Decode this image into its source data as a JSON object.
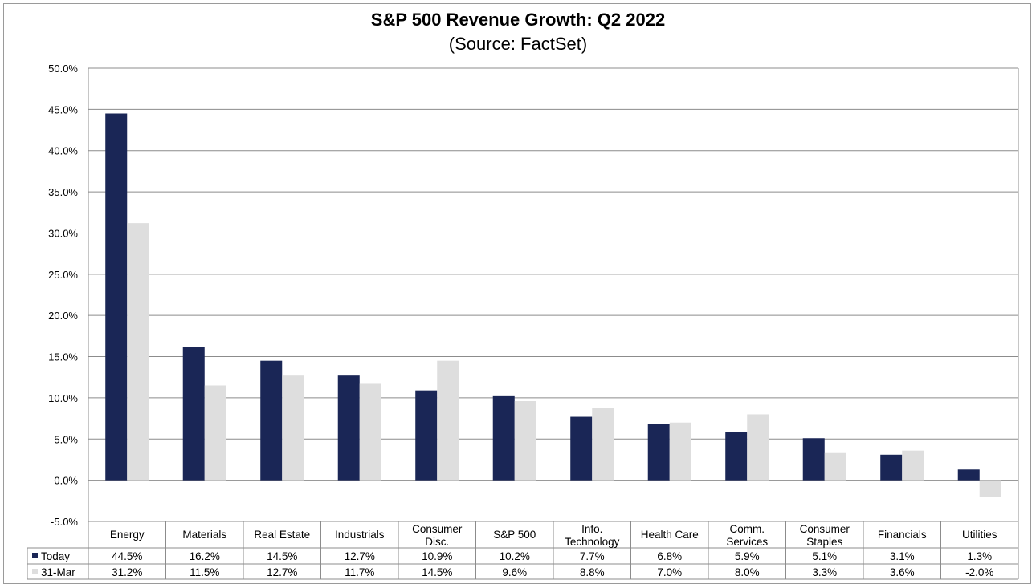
{
  "chart_data": {
    "type": "bar",
    "title": "S&P 500 Revenue Growth: Q2 2022",
    "subtitle": "(Source: FactSet)",
    "categories": [
      "Energy",
      "Materials",
      "Real Estate",
      "Industrials",
      "Consumer Disc.",
      "S&P 500",
      "Info. Technology",
      "Health Care",
      "Comm. Services",
      "Consumer Staples",
      "Financials",
      "Utilities"
    ],
    "category_lines": [
      [
        "Energy"
      ],
      [
        "Materials"
      ],
      [
        "Real Estate"
      ],
      [
        "Industrials"
      ],
      [
        "Consumer",
        "Disc."
      ],
      [
        "S&P 500"
      ],
      [
        "Info.",
        "Technology"
      ],
      [
        "Health Care"
      ],
      [
        "Comm.",
        "Services"
      ],
      [
        "Consumer",
        "Staples"
      ],
      [
        "Financials"
      ],
      [
        "Utilities"
      ]
    ],
    "series": [
      {
        "name": "Today",
        "color": "#1a2656",
        "values": [
          44.5,
          16.2,
          14.5,
          12.7,
          10.9,
          10.2,
          7.7,
          6.8,
          5.9,
          5.1,
          3.1,
          1.3
        ],
        "labels": [
          "44.5%",
          "16.2%",
          "14.5%",
          "12.7%",
          "10.9%",
          "10.2%",
          "7.7%",
          "6.8%",
          "5.9%",
          "5.1%",
          "3.1%",
          "1.3%"
        ]
      },
      {
        "name": "31-Mar",
        "color": "#dedede",
        "values": [
          31.2,
          11.5,
          12.7,
          11.7,
          14.5,
          9.6,
          8.8,
          7.0,
          8.0,
          3.3,
          3.6,
          -2.0
        ],
        "labels": [
          "31.2%",
          "11.5%",
          "12.7%",
          "11.7%",
          "14.5%",
          "9.6%",
          "8.8%",
          "7.0%",
          "8.0%",
          "3.3%",
          "3.6%",
          "-2.0%"
        ]
      }
    ],
    "yticks": [
      "50.0%",
      "45.0%",
      "40.0%",
      "35.0%",
      "30.0%",
      "25.0%",
      "20.0%",
      "15.0%",
      "10.0%",
      "5.0%",
      "0.0%",
      "-5.0%"
    ],
    "ylim": [
      -5,
      50
    ],
    "grid": true,
    "legend": "data table below chart"
  }
}
